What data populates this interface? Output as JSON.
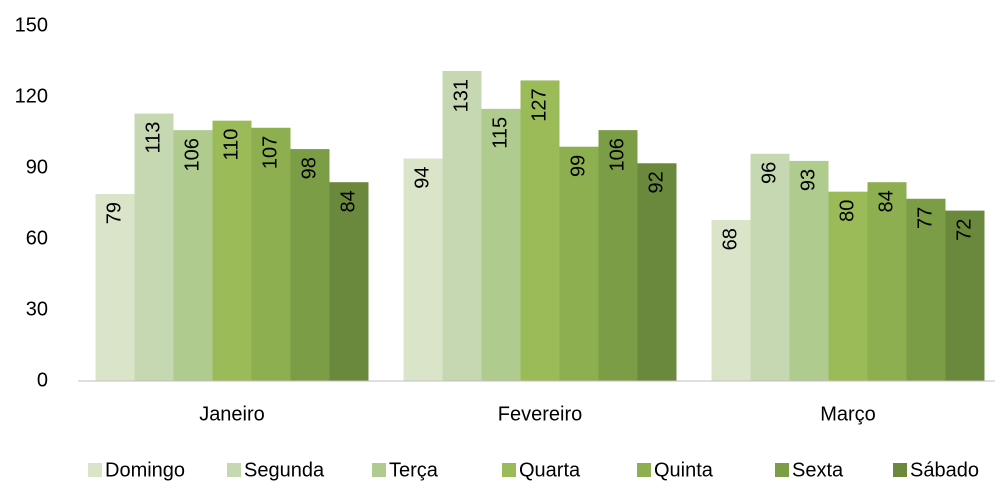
{
  "chart_data": {
    "type": "bar",
    "categories": [
      "Janeiro",
      "Fevereiro",
      "Março"
    ],
    "series": [
      {
        "name": "Domingo",
        "color": "#d9e4c9",
        "values": [
          79,
          94,
          68
        ]
      },
      {
        "name": "Segunda",
        "color": "#c6d8b1",
        "values": [
          113,
          131,
          96
        ]
      },
      {
        "name": "Terça",
        "color": "#afcb8e",
        "values": [
          106,
          115,
          93
        ]
      },
      {
        "name": "Quarta",
        "color": "#9bbb59",
        "values": [
          110,
          127,
          80
        ]
      },
      {
        "name": "Quinta",
        "color": "#8daf50",
        "values": [
          107,
          99,
          84
        ]
      },
      {
        "name": "Sexta",
        "color": "#7b9d46",
        "values": [
          98,
          106,
          77
        ]
      },
      {
        "name": "Sábado",
        "color": "#6b893d",
        "values": [
          84,
          92,
          72
        ]
      }
    ],
    "ylim": [
      0,
      150
    ],
    "yticks": [
      0,
      30,
      60,
      90,
      120,
      150
    ],
    "grid": false,
    "legend": "bottom"
  }
}
